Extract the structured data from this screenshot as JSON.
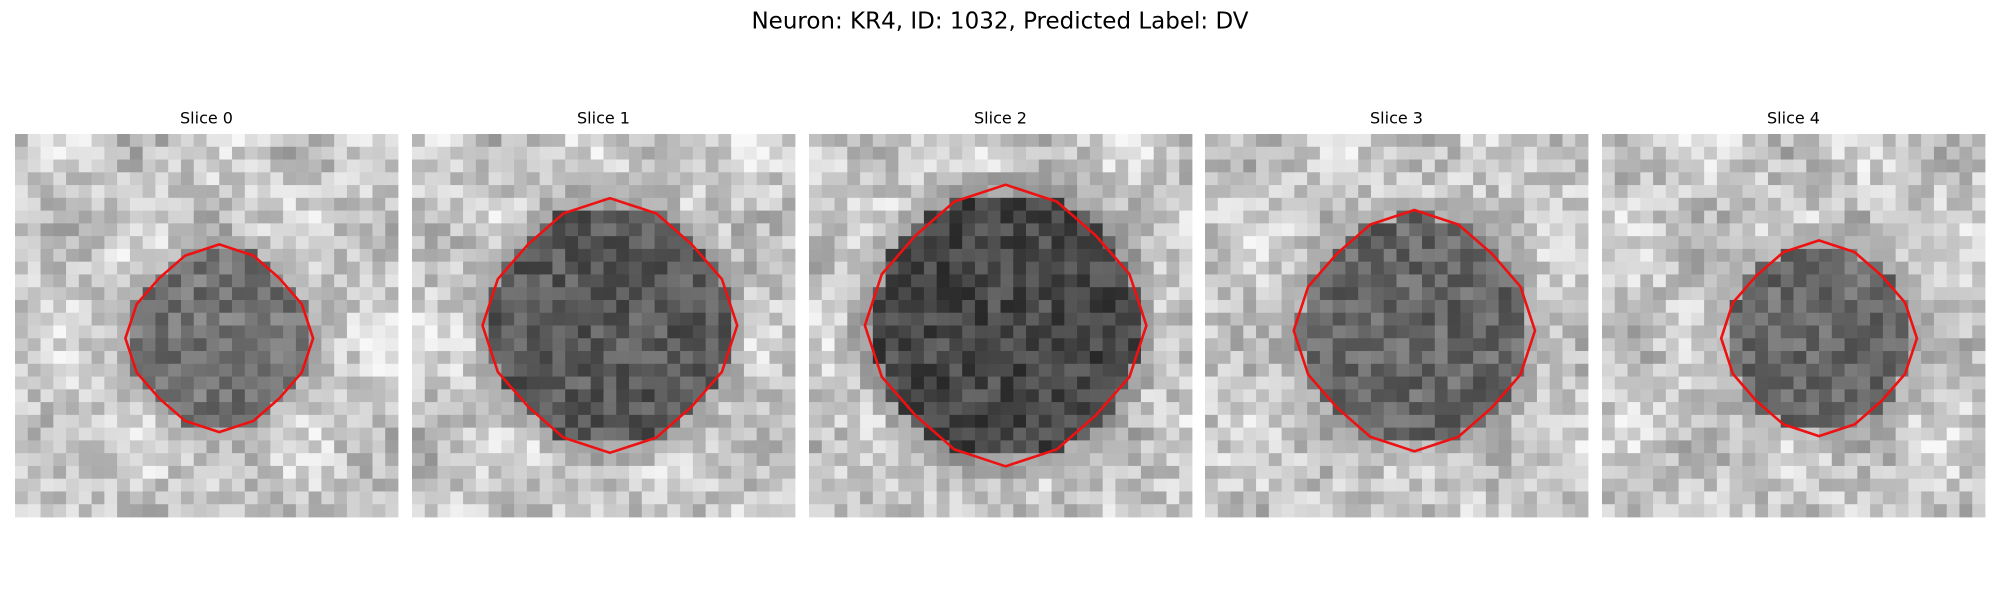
{
  "title": "Neuron: KR4, ID: 1032, Predicted Label: DV",
  "panels": [
    {
      "title": "Slice 0"
    },
    {
      "title": "Slice 1"
    },
    {
      "title": "Slice 2"
    },
    {
      "title": "Slice 3"
    },
    {
      "title": "Slice 4"
    }
  ]
}
